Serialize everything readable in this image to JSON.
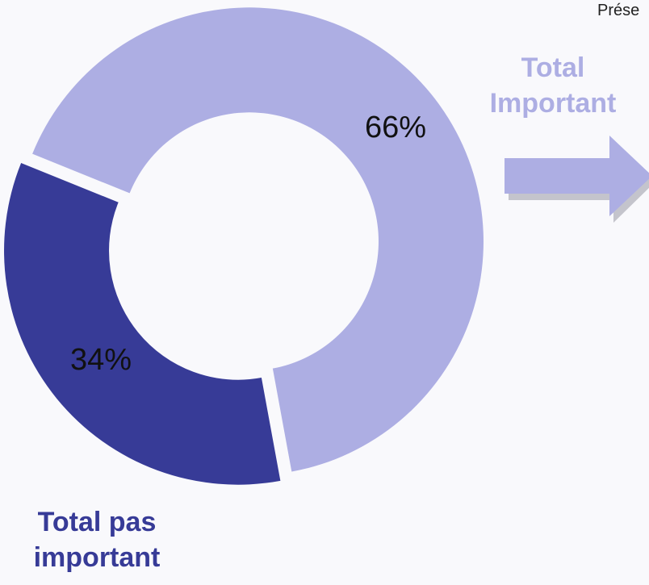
{
  "chart_data": {
    "type": "donut",
    "categories": [
      "Total Important",
      "Total pas important"
    ],
    "values": [
      66,
      34
    ],
    "value_labels": [
      "66%",
      "34%"
    ],
    "colors": [
      "#adaee3",
      "#373b97"
    ],
    "annotations": [
      "Prése"
    ]
  }
}
